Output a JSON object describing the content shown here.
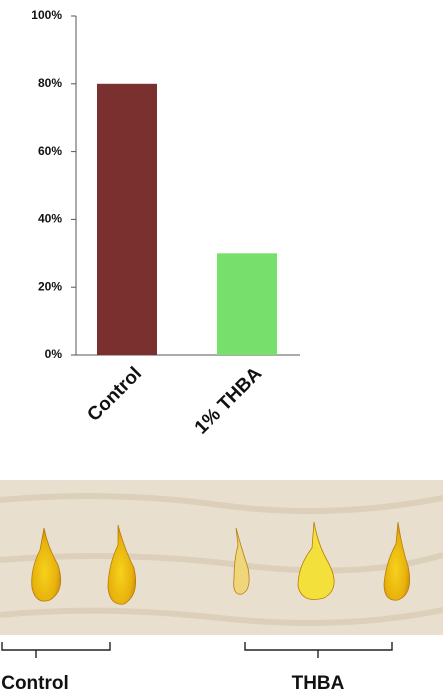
{
  "chart_data": {
    "type": "bar",
    "categories": [
      "Control",
      "1% THBA"
    ],
    "series": [
      {
        "values": [
          80,
          30
        ]
      }
    ],
    "colors": [
      "#7b3030",
      "#77e06c"
    ],
    "ylim": [
      0,
      100
    ],
    "yticks": [
      {
        "value": 0,
        "label": "0%"
      },
      {
        "value": 20,
        "label": "20%"
      },
      {
        "value": 40,
        "label": "40%"
      },
      {
        "value": 60,
        "label": "60%"
      },
      {
        "value": 80,
        "label": "80%"
      },
      {
        "value": 100,
        "label": "100%"
      }
    ]
  },
  "photo": {
    "labels": [
      "Control",
      "THBA"
    ]
  }
}
